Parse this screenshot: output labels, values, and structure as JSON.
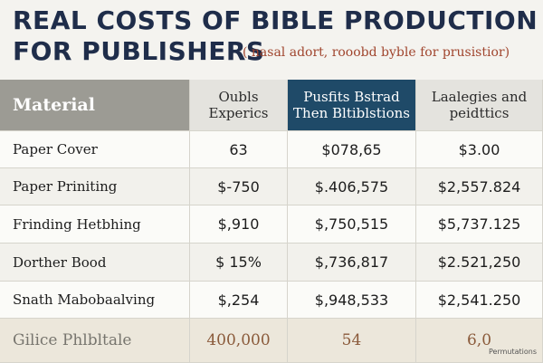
{
  "header": {
    "title": [
      "REAL COSTS OF BIBLE PRODUCTION",
      "FOR PUBLISHERS"
    ],
    "subtitle": "( nasal adort, rooobd byble for prusistior)"
  },
  "table": {
    "columns": [
      [
        "Material"
      ],
      [
        "Oubls",
        "Experics"
      ],
      [
        "Pusfits Bstrad",
        "Then Bltiblstions"
      ],
      [
        "Laalegies and",
        "peidttics"
      ]
    ],
    "rows": [
      [
        "Paper Cover",
        "63",
        "$078,65",
        "$3.00"
      ],
      [
        "Paper Priniting",
        "$-750",
        "$.406,575",
        "$2,557.824"
      ],
      [
        "Frinding Hetbhing",
        "$,910",
        "$,750,515",
        "$5,737.125"
      ],
      [
        "Dorther Bood",
        "$ 15%",
        "$,736,817",
        "$2.521,250"
      ],
      [
        "Snath Mabobaalving",
        "$,254",
        "$,948,533",
        "$2,541.250"
      ]
    ],
    "footer": [
      "Gilice Phlbltale",
      "400,000",
      "54",
      "6,0"
    ],
    "footer_note": "Permutations"
  }
}
